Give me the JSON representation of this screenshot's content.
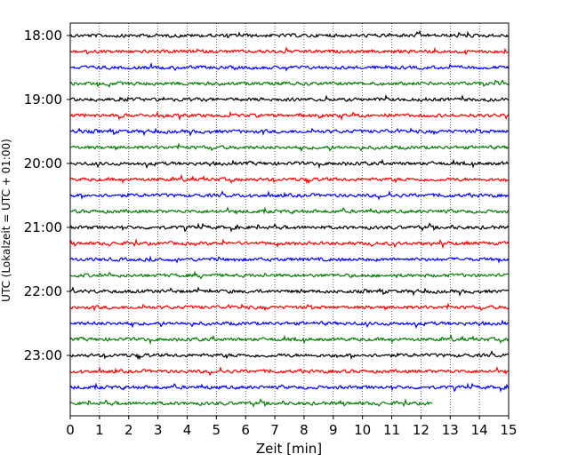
{
  "chart_data": {
    "type": "line",
    "title": "",
    "xlabel": "Zeit  [min]",
    "ylabel": "UTC (Lokalzeit = UTC + 01:00)",
    "xlim": [
      0,
      15
    ],
    "x_ticks": [
      "0",
      "1",
      "2",
      "3",
      "4",
      "5",
      "6",
      "7",
      "8",
      "9",
      "10",
      "11",
      "12",
      "13",
      "14",
      "15"
    ],
    "y_ticks": [
      "18:00",
      "19:00",
      "20:00",
      "21:00",
      "22:00",
      "23:00"
    ],
    "grid": "vertical dotted",
    "colors": [
      "#000000",
      "#ff0000",
      "#0000ff",
      "#008000"
    ],
    "series": [
      {
        "start": "18:00",
        "end_minute": 15
      },
      {
        "start": "18:15",
        "end_minute": 15
      },
      {
        "start": "18:30",
        "end_minute": 15
      },
      {
        "start": "18:45",
        "end_minute": 15
      },
      {
        "start": "19:00",
        "end_minute": 15
      },
      {
        "start": "19:15",
        "end_minute": 15
      },
      {
        "start": "19:30",
        "end_minute": 15
      },
      {
        "start": "19:45",
        "end_minute": 15
      },
      {
        "start": "20:00",
        "end_minute": 15
      },
      {
        "start": "20:15",
        "end_minute": 15
      },
      {
        "start": "20:30",
        "end_minute": 15
      },
      {
        "start": "20:45",
        "end_minute": 15
      },
      {
        "start": "21:00",
        "end_minute": 15
      },
      {
        "start": "21:15",
        "end_minute": 15
      },
      {
        "start": "21:30",
        "end_minute": 15
      },
      {
        "start": "21:45",
        "end_minute": 15
      },
      {
        "start": "22:00",
        "end_minute": 15
      },
      {
        "start": "22:15",
        "end_minute": 15
      },
      {
        "start": "22:30",
        "end_minute": 15
      },
      {
        "start": "22:45",
        "end_minute": 15
      },
      {
        "start": "23:00",
        "end_minute": 15
      },
      {
        "start": "23:15",
        "end_minute": 15
      },
      {
        "start": "23:30",
        "end_minute": 15
      },
      {
        "start": "23:45",
        "end_minute": 12.4
      }
    ]
  }
}
